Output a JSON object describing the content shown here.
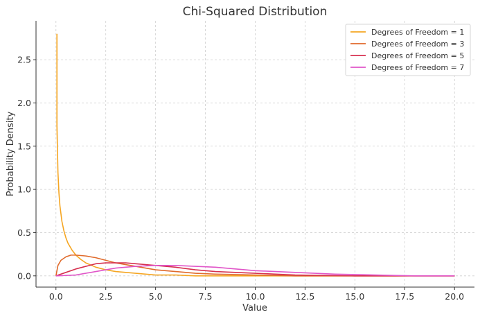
{
  "chart_data": {
    "type": "line",
    "title": "Chi-Squared Distribution",
    "xlabel": "Value",
    "ylabel": "Probability Density",
    "xlim": [
      -1.0,
      21.0
    ],
    "ylim": [
      -0.13,
      2.95
    ],
    "x_ticks": [
      0.0,
      2.5,
      5.0,
      7.5,
      10.0,
      12.5,
      15.0,
      17.5,
      20.0
    ],
    "x_tick_labels": [
      "0.0",
      "2.5",
      "5.0",
      "7.5",
      "10.0",
      "12.5",
      "15.0",
      "17.5",
      "20.0"
    ],
    "y_ticks": [
      0.0,
      0.5,
      1.0,
      1.5,
      2.0,
      2.5
    ],
    "y_tick_labels": [
      "0.0",
      "0.5",
      "1.0",
      "1.5",
      "2.0",
      "2.5"
    ],
    "grid": true,
    "legend_position": "top-right",
    "series": [
      {
        "name": "Degrees of Freedom = 1",
        "color": "#f5a623",
        "x": [
          0.05,
          0.1,
          0.15,
          0.2,
          0.3,
          0.4,
          0.5,
          0.6,
          0.8,
          1.0,
          1.25,
          1.5,
          2.0,
          2.5,
          3.0,
          4.0,
          5.0,
          6.0,
          7.0,
          8.0,
          10.0,
          12.0,
          15.0,
          20.0
        ],
        "y": [
          1.74,
          1.2,
          0.96,
          0.81,
          0.63,
          0.52,
          0.44,
          0.38,
          0.3,
          0.24,
          0.19,
          0.15,
          0.1,
          0.07,
          0.05,
          0.03,
          0.01,
          0.01,
          0.0,
          0.0,
          0.0,
          0.0,
          0.0,
          0.0
        ]
      },
      {
        "name": "Degrees of Freedom = 3",
        "color": "#e06a2b",
        "x": [
          0.0,
          0.1,
          0.25,
          0.5,
          0.75,
          1.0,
          1.5,
          2.0,
          2.5,
          3.0,
          4.0,
          5.0,
          6.0,
          7.0,
          8.0,
          10.0,
          12.0,
          15.0,
          20.0
        ],
        "y": [
          0.0,
          0.12,
          0.18,
          0.22,
          0.24,
          0.24,
          0.23,
          0.21,
          0.18,
          0.15,
          0.11,
          0.07,
          0.05,
          0.03,
          0.02,
          0.01,
          0.0,
          0.0,
          0.0
        ]
      },
      {
        "name": "Degrees of Freedom = 5",
        "color": "#d6304f",
        "x": [
          0.0,
          0.5,
          1.0,
          1.5,
          2.0,
          2.5,
          3.0,
          3.5,
          4.0,
          5.0,
          6.0,
          7.0,
          8.0,
          10.0,
          12.0,
          15.0,
          20.0
        ],
        "y": [
          0.0,
          0.04,
          0.08,
          0.11,
          0.14,
          0.15,
          0.15,
          0.15,
          0.14,
          0.12,
          0.1,
          0.07,
          0.05,
          0.03,
          0.01,
          0.0,
          0.0
        ]
      },
      {
        "name": "Degrees of Freedom = 7",
        "color": "#e055c8",
        "x": [
          0.0,
          1.0,
          2.0,
          3.0,
          4.0,
          5.0,
          6.0,
          7.0,
          8.0,
          9.0,
          10.0,
          12.0,
          14.0,
          16.0,
          18.0,
          20.0
        ],
        "y": [
          0.0,
          0.01,
          0.05,
          0.09,
          0.11,
          0.12,
          0.12,
          0.11,
          0.1,
          0.08,
          0.06,
          0.04,
          0.02,
          0.01,
          0.0,
          0.0
        ]
      }
    ]
  }
}
